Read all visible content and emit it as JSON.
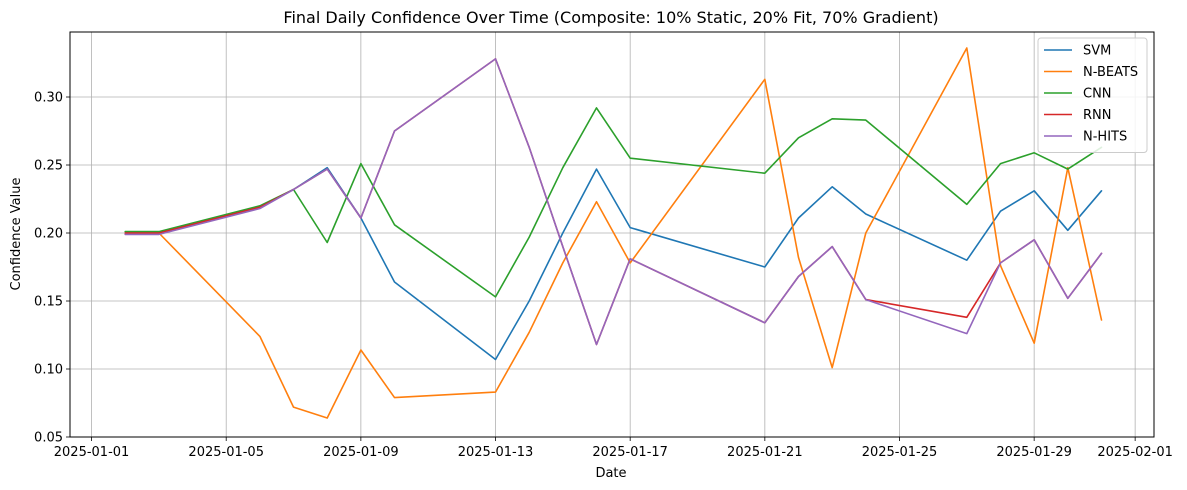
{
  "chart_data": {
    "type": "line",
    "title": "Final Daily Confidence Over Time (Composite: 10% Static, 20% Fit, 70% Gradient)",
    "xlabel": "Date",
    "ylabel": "Confidence Value",
    "xlim": [
      "2025-01-01",
      "2025-02-01"
    ],
    "ylim": [
      0.05,
      0.35
    ],
    "xticks": [
      "2025-01-01",
      "2025-01-05",
      "2025-01-09",
      "2025-01-13",
      "2025-01-17",
      "2025-01-21",
      "2025-01-25",
      "2025-01-29",
      "2025-02-01"
    ],
    "yticks": [
      "0.05",
      "0.10",
      "0.15",
      "0.20",
      "0.25",
      "0.30"
    ],
    "grid": true,
    "legend_position": "upper right",
    "x": [
      "2025-01-02",
      "2025-01-03",
      "2025-01-06",
      "2025-01-07",
      "2025-01-08",
      "2025-01-09",
      "2025-01-10",
      "2025-01-13",
      "2025-01-14",
      "2025-01-15",
      "2025-01-16",
      "2025-01-17",
      "2025-01-21",
      "2025-01-22",
      "2025-01-23",
      "2025-01-24",
      "2025-01-27",
      "2025-01-28",
      "2025-01-29",
      "2025-01-30",
      "2025-01-31"
    ],
    "series": [
      {
        "name": "SVM",
        "color": "#1f77b4",
        "values": [
          0.2,
          0.2,
          0.219,
          0.232,
          0.248,
          0.211,
          0.164,
          0.107,
          0.15,
          0.2,
          0.247,
          0.204,
          0.175,
          0.211,
          0.234,
          0.214,
          0.18,
          0.216,
          0.231,
          0.202,
          0.231
        ]
      },
      {
        "name": "N-BEATS",
        "color": "#ff7f0e",
        "values": [
          0.2,
          0.2,
          0.124,
          0.072,
          0.064,
          0.114,
          0.079,
          0.083,
          0.127,
          0.178,
          0.223,
          0.178,
          0.313,
          0.182,
          0.101,
          0.2,
          0.336,
          0.176,
          0.119,
          0.248,
          0.136
        ]
      },
      {
        "name": "CNN",
        "color": "#2ca02c",
        "values": [
          0.201,
          0.201,
          0.22,
          0.232,
          0.193,
          0.251,
          0.206,
          0.153,
          0.197,
          0.248,
          0.292,
          0.255,
          0.244,
          0.27,
          0.284,
          0.283,
          0.221,
          0.251,
          0.259,
          0.247,
          0.263
        ]
      },
      {
        "name": "RNN",
        "color": "#d62728",
        "values": [
          0.2,
          0.2,
          0.219,
          0.232,
          0.247,
          0.211,
          0.275,
          0.328,
          0.263,
          0.19,
          0.118,
          0.181,
          0.134,
          0.168,
          0.19,
          0.151,
          0.138,
          0.178,
          0.195,
          0.152,
          0.185
        ]
      },
      {
        "name": "N-HITS",
        "color": "#9467bd",
        "values": [
          0.199,
          0.199,
          0.218,
          0.232,
          0.247,
          0.211,
          0.275,
          0.328,
          0.263,
          0.19,
          0.118,
          0.181,
          0.134,
          0.168,
          0.19,
          0.151,
          0.126,
          0.178,
          0.195,
          0.152,
          0.185
        ]
      }
    ]
  }
}
